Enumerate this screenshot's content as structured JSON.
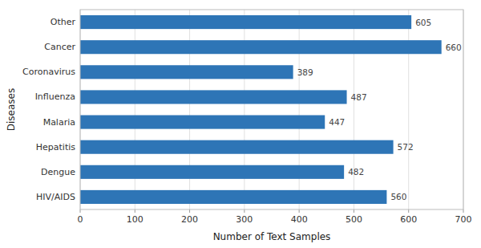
{
  "chart_data": {
    "type": "bar",
    "orientation": "horizontal",
    "categories": [
      "HIV/AIDS",
      "Dengue",
      "Hepatitis",
      "Malaria",
      "Influenza",
      "Coronavirus",
      "Cancer",
      "Other"
    ],
    "values": [
      560,
      482,
      572,
      447,
      487,
      389,
      660,
      605
    ],
    "color": "#2E75B6",
    "xlabel": "Number of Text Samples",
    "ylabel": "Diseases",
    "xlim": [
      0,
      700
    ],
    "xticks": [
      0,
      100,
      200,
      300,
      400,
      500,
      600,
      700
    ],
    "grid": true,
    "data_labels": true
  }
}
